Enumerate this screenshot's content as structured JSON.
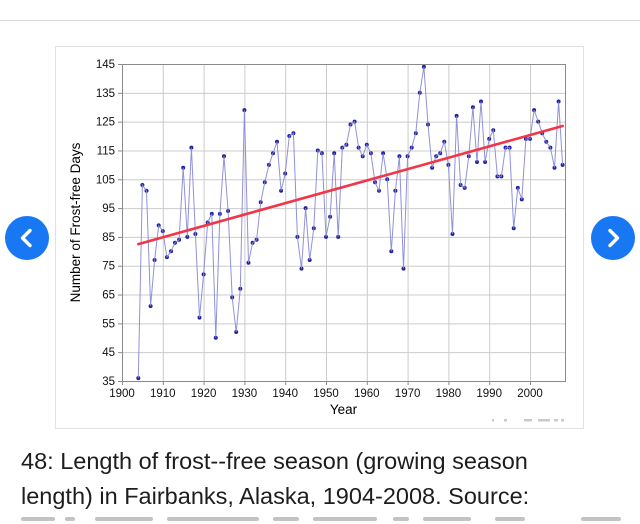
{
  "caption": {
    "line1": "48: Length of frost--free season (growing season",
    "line2": "length) in Fairbanks, Alaska, 1904-2008. Source:"
  },
  "nav": {
    "prev_icon": "chevron-left",
    "next_icon": "chevron-right",
    "button_color": "#1877f2"
  },
  "chart_data": {
    "type": "line",
    "title": "",
    "xlabel": "Year",
    "ylabel": "Number of Frost-free Days",
    "xlim": [
      1900,
      2009
    ],
    "ylim": [
      35,
      145
    ],
    "grid": true,
    "xticks": [
      1900,
      1910,
      1920,
      1930,
      1940,
      1950,
      1960,
      1970,
      1980,
      1990,
      2000
    ],
    "yticks": [
      35,
      45,
      55,
      65,
      75,
      85,
      95,
      105,
      115,
      125,
      135,
      145
    ],
    "year_start": 1904,
    "year_end": 2008,
    "values": [
      36,
      103,
      101,
      61,
      77,
      89,
      87,
      78,
      80,
      83,
      84,
      109,
      85,
      116,
      86,
      57,
      72,
      90,
      93,
      50,
      93,
      113,
      94,
      64,
      52,
      67,
      129,
      76,
      83,
      84,
      97,
      104,
      110,
      114,
      118,
      101,
      107,
      120,
      121,
      85,
      74,
      95,
      77,
      88,
      115,
      114,
      85,
      92,
      114,
      85,
      116,
      117,
      124,
      125,
      116,
      113,
      117,
      114,
      104,
      101,
      114,
      105,
      80,
      101,
      113,
      74,
      113,
      116,
      121,
      135,
      144,
      124,
      109,
      113,
      114,
      118,
      110,
      86,
      127,
      103,
      102,
      113,
      130,
      111,
      132,
      111,
      119,
      122,
      106,
      106,
      116,
      116,
      88,
      102,
      98,
      119,
      119,
      129,
      125,
      121,
      118,
      116,
      109,
      132,
      110
    ],
    "trend": {
      "x1": 1904,
      "y1": 82.5,
      "x2": 2008,
      "y2": 123.5
    },
    "colors": {
      "series_line": "#8585d6",
      "marker": "#2222a0",
      "trend_line": "#f23648",
      "grid": "#cccccc",
      "spine": "#8a8a8a",
      "tick_text": "#111111"
    },
    "legend": null
  }
}
